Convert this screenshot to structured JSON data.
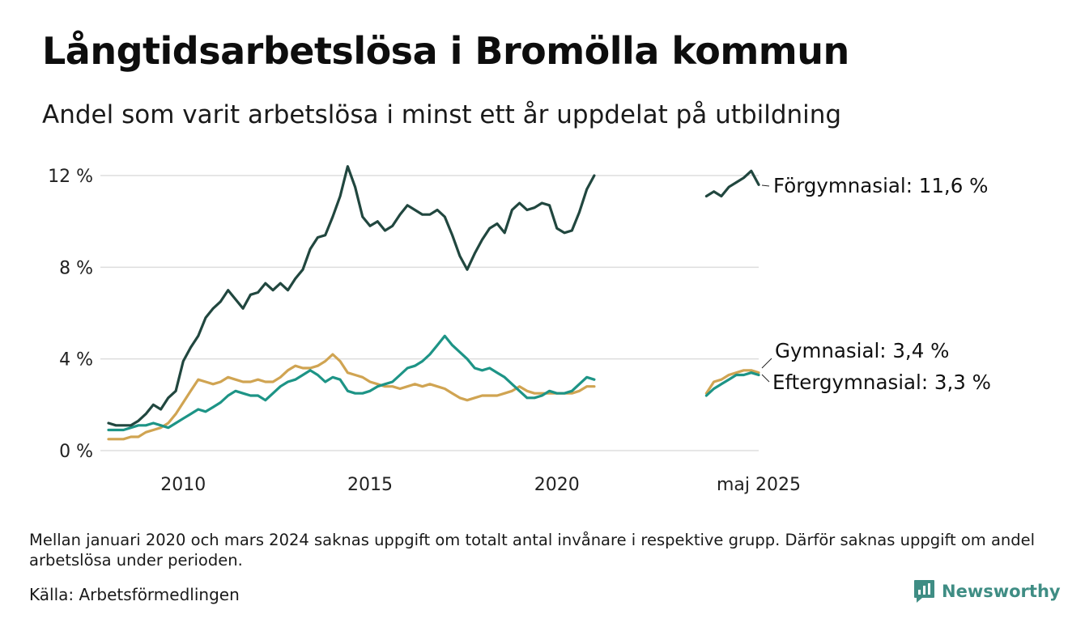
{
  "title": "Långtidsarbetslösa i Bromölla kommun",
  "subtitle": "Andel som varit arbetslösa i minst ett år uppdelat på utbildning",
  "note": "Mellan januari 2020 och mars 2024 saknas uppgift om totalt antal invånare i respektive grupp. Därför saknas uppgift om andel arbetslösa under perioden.",
  "source": "Källa: Arbetsförmedlingen",
  "brand": "Newsworthy",
  "chart_data": {
    "type": "line",
    "ylim": [
      0,
      12
    ],
    "y_ticks": [
      0,
      4,
      8,
      12
    ],
    "y_tick_labels": [
      "0 %",
      "4 %",
      "8 %",
      "12 %"
    ],
    "x_tick_labels": [
      {
        "x": 2010,
        "label": "2010"
      },
      {
        "x": 2015,
        "label": "2015"
      },
      {
        "x": 2020,
        "label": "2020"
      },
      {
        "x": 2025.4,
        "label": "maj 2025"
      }
    ],
    "grid": "horizontal",
    "series": [
      {
        "name": "Förgymnasial",
        "end_label": "Förgymnasial: 11,6 %",
        "color": "#21473f",
        "segments": [
          [
            [
              2008.0,
              1.2
            ],
            [
              2008.2,
              1.1
            ],
            [
              2008.4,
              1.1
            ],
            [
              2008.6,
              1.1
            ],
            [
              2008.8,
              1.3
            ],
            [
              2009.0,
              1.6
            ],
            [
              2009.2,
              2.0
            ],
            [
              2009.4,
              1.8
            ],
            [
              2009.6,
              2.3
            ],
            [
              2009.8,
              2.6
            ],
            [
              2010.0,
              3.9
            ],
            [
              2010.2,
              4.5
            ],
            [
              2010.4,
              5.0
            ],
            [
              2010.6,
              5.8
            ],
            [
              2010.8,
              6.2
            ],
            [
              2011.0,
              6.5
            ],
            [
              2011.2,
              7.0
            ],
            [
              2011.4,
              6.6
            ],
            [
              2011.6,
              6.2
            ],
            [
              2011.8,
              6.8
            ],
            [
              2012.0,
              6.9
            ],
            [
              2012.2,
              7.3
            ],
            [
              2012.4,
              7.0
            ],
            [
              2012.6,
              7.3
            ],
            [
              2012.8,
              7.0
            ],
            [
              2013.0,
              7.5
            ],
            [
              2013.2,
              7.9
            ],
            [
              2013.4,
              8.8
            ],
            [
              2013.6,
              9.3
            ],
            [
              2013.8,
              9.4
            ],
            [
              2014.0,
              10.2
            ],
            [
              2014.2,
              11.1
            ],
            [
              2014.4,
              12.4
            ],
            [
              2014.6,
              11.5
            ],
            [
              2014.8,
              10.2
            ],
            [
              2015.0,
              9.8
            ],
            [
              2015.2,
              10.0
            ],
            [
              2015.4,
              9.6
            ],
            [
              2015.6,
              9.8
            ],
            [
              2015.8,
              10.3
            ],
            [
              2016.0,
              10.7
            ],
            [
              2016.2,
              10.5
            ],
            [
              2016.4,
              10.3
            ],
            [
              2016.6,
              10.3
            ],
            [
              2016.8,
              10.5
            ],
            [
              2017.0,
              10.2
            ],
            [
              2017.2,
              9.4
            ],
            [
              2017.4,
              8.5
            ],
            [
              2017.6,
              7.9
            ],
            [
              2017.8,
              8.6
            ],
            [
              2018.0,
              9.2
            ],
            [
              2018.2,
              9.7
            ],
            [
              2018.4,
              9.9
            ],
            [
              2018.6,
              9.5
            ],
            [
              2018.8,
              10.5
            ],
            [
              2019.0,
              10.8
            ],
            [
              2019.2,
              10.5
            ],
            [
              2019.4,
              10.6
            ],
            [
              2019.6,
              10.8
            ],
            [
              2019.8,
              10.7
            ],
            [
              2020.0,
              9.7
            ],
            [
              2020.2,
              9.5
            ],
            [
              2020.4,
              9.6
            ],
            [
              2020.6,
              10.4
            ],
            [
              2020.8,
              11.4
            ],
            [
              2021.0,
              12.0
            ]
          ],
          [
            [
              2024.0,
              11.1
            ],
            [
              2024.2,
              11.3
            ],
            [
              2024.4,
              11.1
            ],
            [
              2024.6,
              11.5
            ],
            [
              2024.8,
              11.7
            ],
            [
              2025.0,
              11.9
            ],
            [
              2025.2,
              12.2
            ],
            [
              2025.4,
              11.6
            ]
          ]
        ]
      },
      {
        "name": "Gymnasial",
        "end_label": "Gymnasial:  3,4 %",
        "color": "#d0a452",
        "segments": [
          [
            [
              2008.0,
              0.5
            ],
            [
              2008.2,
              0.5
            ],
            [
              2008.4,
              0.5
            ],
            [
              2008.6,
              0.6
            ],
            [
              2008.8,
              0.6
            ],
            [
              2009.0,
              0.8
            ],
            [
              2009.2,
              0.9
            ],
            [
              2009.4,
              1.0
            ],
            [
              2009.6,
              1.2
            ],
            [
              2009.8,
              1.6
            ],
            [
              2010.0,
              2.1
            ],
            [
              2010.2,
              2.6
            ],
            [
              2010.4,
              3.1
            ],
            [
              2010.6,
              3.0
            ],
            [
              2010.8,
              2.9
            ],
            [
              2011.0,
              3.0
            ],
            [
              2011.2,
              3.2
            ],
            [
              2011.4,
              3.1
            ],
            [
              2011.6,
              3.0
            ],
            [
              2011.8,
              3.0
            ],
            [
              2012.0,
              3.1
            ],
            [
              2012.2,
              3.0
            ],
            [
              2012.4,
              3.0
            ],
            [
              2012.6,
              3.2
            ],
            [
              2012.8,
              3.5
            ],
            [
              2013.0,
              3.7
            ],
            [
              2013.2,
              3.6
            ],
            [
              2013.4,
              3.6
            ],
            [
              2013.6,
              3.7
            ],
            [
              2013.8,
              3.9
            ],
            [
              2014.0,
              4.2
            ],
            [
              2014.2,
              3.9
            ],
            [
              2014.4,
              3.4
            ],
            [
              2014.6,
              3.3
            ],
            [
              2014.8,
              3.2
            ],
            [
              2015.0,
              3.0
            ],
            [
              2015.2,
              2.9
            ],
            [
              2015.4,
              2.8
            ],
            [
              2015.6,
              2.8
            ],
            [
              2015.8,
              2.7
            ],
            [
              2016.0,
              2.8
            ],
            [
              2016.2,
              2.9
            ],
            [
              2016.4,
              2.8
            ],
            [
              2016.6,
              2.9
            ],
            [
              2016.8,
              2.8
            ],
            [
              2017.0,
              2.7
            ],
            [
              2017.2,
              2.5
            ],
            [
              2017.4,
              2.3
            ],
            [
              2017.6,
              2.2
            ],
            [
              2017.8,
              2.3
            ],
            [
              2018.0,
              2.4
            ],
            [
              2018.2,
              2.4
            ],
            [
              2018.4,
              2.4
            ],
            [
              2018.6,
              2.5
            ],
            [
              2018.8,
              2.6
            ],
            [
              2019.0,
              2.8
            ],
            [
              2019.2,
              2.6
            ],
            [
              2019.4,
              2.5
            ],
            [
              2019.6,
              2.5
            ],
            [
              2019.8,
              2.5
            ],
            [
              2020.0,
              2.5
            ],
            [
              2020.2,
              2.5
            ],
            [
              2020.4,
              2.5
            ],
            [
              2020.6,
              2.6
            ],
            [
              2020.8,
              2.8
            ],
            [
              2021.0,
              2.8
            ]
          ],
          [
            [
              2024.0,
              2.5
            ],
            [
              2024.2,
              3.0
            ],
            [
              2024.4,
              3.1
            ],
            [
              2024.6,
              3.3
            ],
            [
              2024.8,
              3.4
            ],
            [
              2025.0,
              3.5
            ],
            [
              2025.2,
              3.5
            ],
            [
              2025.4,
              3.4
            ]
          ]
        ]
      },
      {
        "name": "Eftergymnasial",
        "end_label": "Eftergymnasial:  3,3 %",
        "color": "#1d9486",
        "segments": [
          [
            [
              2008.0,
              0.9
            ],
            [
              2008.2,
              0.9
            ],
            [
              2008.4,
              0.9
            ],
            [
              2008.6,
              1.0
            ],
            [
              2008.8,
              1.1
            ],
            [
              2009.0,
              1.1
            ],
            [
              2009.2,
              1.2
            ],
            [
              2009.4,
              1.1
            ],
            [
              2009.6,
              1.0
            ],
            [
              2009.8,
              1.2
            ],
            [
              2010.0,
              1.4
            ],
            [
              2010.2,
              1.6
            ],
            [
              2010.4,
              1.8
            ],
            [
              2010.6,
              1.7
            ],
            [
              2010.8,
              1.9
            ],
            [
              2011.0,
              2.1
            ],
            [
              2011.2,
              2.4
            ],
            [
              2011.4,
              2.6
            ],
            [
              2011.6,
              2.5
            ],
            [
              2011.8,
              2.4
            ],
            [
              2012.0,
              2.4
            ],
            [
              2012.2,
              2.2
            ],
            [
              2012.4,
              2.5
            ],
            [
              2012.6,
              2.8
            ],
            [
              2012.8,
              3.0
            ],
            [
              2013.0,
              3.1
            ],
            [
              2013.2,
              3.3
            ],
            [
              2013.4,
              3.5
            ],
            [
              2013.6,
              3.3
            ],
            [
              2013.8,
              3.0
            ],
            [
              2014.0,
              3.2
            ],
            [
              2014.2,
              3.1
            ],
            [
              2014.4,
              2.6
            ],
            [
              2014.6,
              2.5
            ],
            [
              2014.8,
              2.5
            ],
            [
              2015.0,
              2.6
            ],
            [
              2015.2,
              2.8
            ],
            [
              2015.4,
              2.9
            ],
            [
              2015.6,
              3.0
            ],
            [
              2015.8,
              3.3
            ],
            [
              2016.0,
              3.6
            ],
            [
              2016.2,
              3.7
            ],
            [
              2016.4,
              3.9
            ],
            [
              2016.6,
              4.2
            ],
            [
              2016.8,
              4.6
            ],
            [
              2017.0,
              5.0
            ],
            [
              2017.2,
              4.6
            ],
            [
              2017.4,
              4.3
            ],
            [
              2017.6,
              4.0
            ],
            [
              2017.8,
              3.6
            ],
            [
              2018.0,
              3.5
            ],
            [
              2018.2,
              3.6
            ],
            [
              2018.4,
              3.4
            ],
            [
              2018.6,
              3.2
            ],
            [
              2018.8,
              2.9
            ],
            [
              2019.0,
              2.6
            ],
            [
              2019.2,
              2.3
            ],
            [
              2019.4,
              2.3
            ],
            [
              2019.6,
              2.4
            ],
            [
              2019.8,
              2.6
            ],
            [
              2020.0,
              2.5
            ],
            [
              2020.2,
              2.5
            ],
            [
              2020.4,
              2.6
            ],
            [
              2020.6,
              2.9
            ],
            [
              2020.8,
              3.2
            ],
            [
              2021.0,
              3.1
            ]
          ],
          [
            [
              2024.0,
              2.4
            ],
            [
              2024.2,
              2.7
            ],
            [
              2024.4,
              2.9
            ],
            [
              2024.6,
              3.1
            ],
            [
              2024.8,
              3.3
            ],
            [
              2025.0,
              3.3
            ],
            [
              2025.2,
              3.4
            ],
            [
              2025.4,
              3.3
            ]
          ]
        ]
      }
    ]
  }
}
